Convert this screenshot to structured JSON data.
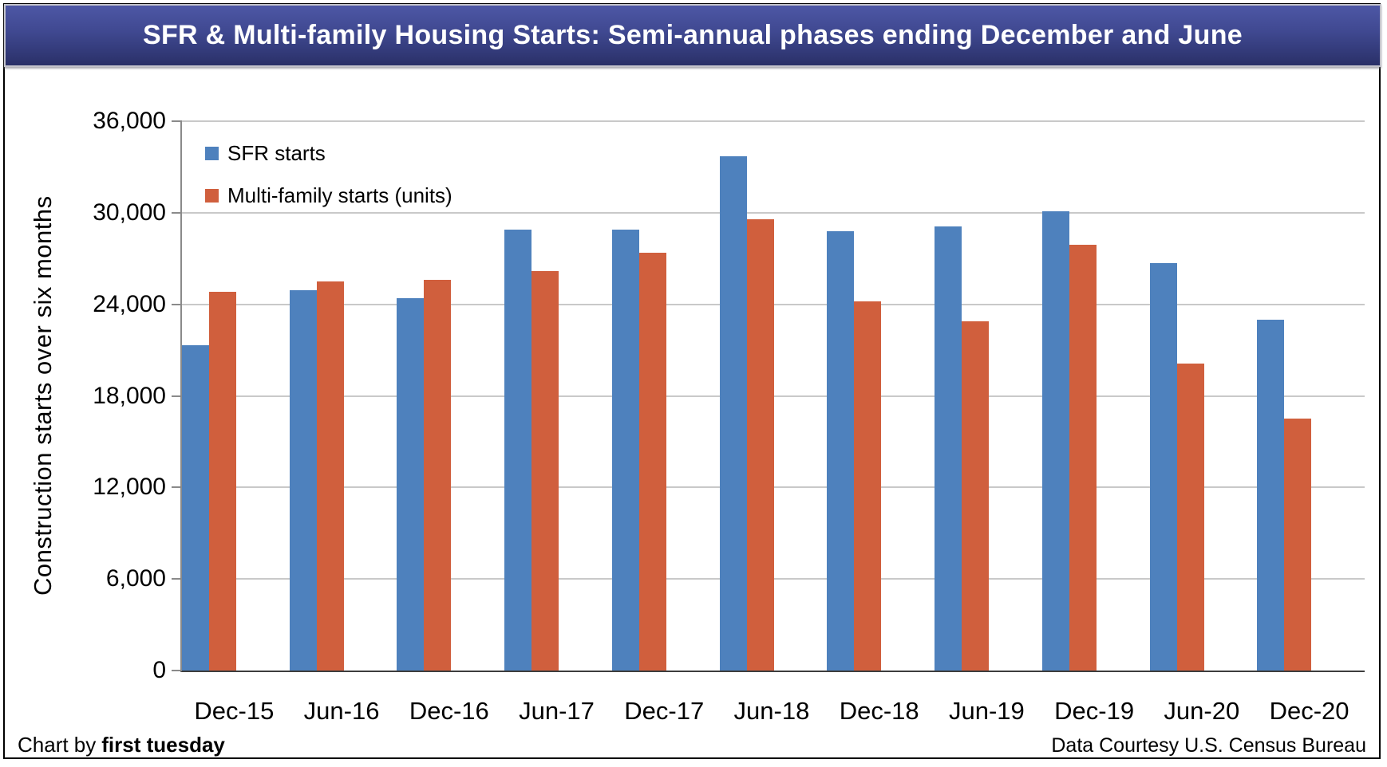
{
  "title": "SFR & Multi-family Housing Starts: Semi-annual phases ending December and June",
  "y_axis": {
    "title": "Construction starts over six months"
  },
  "legend": [
    {
      "label": "SFR starts",
      "color": "#4E81BD"
    },
    {
      "label": "Multi-family starts (units)",
      "color": "#D05F3D"
    }
  ],
  "footer": {
    "left_prefix": "Chart by",
    "left_brand": "first tuesday",
    "right": "Data Courtesy U.S. Census Bureau"
  },
  "chart_data": {
    "type": "bar",
    "title": "SFR & Multi-family Housing Starts: Semi-annual phases ending December and June",
    "xlabel": "",
    "ylabel": "Construction starts over six months",
    "categories": [
      "Dec-15",
      "Jun-16",
      "Dec-16",
      "Jun-17",
      "Dec-17",
      "Jun-18",
      "Dec-18",
      "Jun-19",
      "Dec-19",
      "Jun-20",
      "Dec-20"
    ],
    "series": [
      {
        "name": "SFR starts",
        "color": "#4E81BD",
        "values": [
          21300,
          24900,
          24400,
          28900,
          28900,
          33700,
          28800,
          29100,
          30100,
          26700,
          23000
        ]
      },
      {
        "name": "Multi-family starts (units)",
        "color": "#D05F3D",
        "values": [
          24800,
          25500,
          25600,
          26200,
          27400,
          29600,
          24200,
          22900,
          27900,
          20100,
          16500
        ]
      }
    ],
    "ylim": [
      0,
      36000
    ],
    "ytick_step": 6000,
    "grid": true,
    "legend_position": "inside-top-left"
  }
}
